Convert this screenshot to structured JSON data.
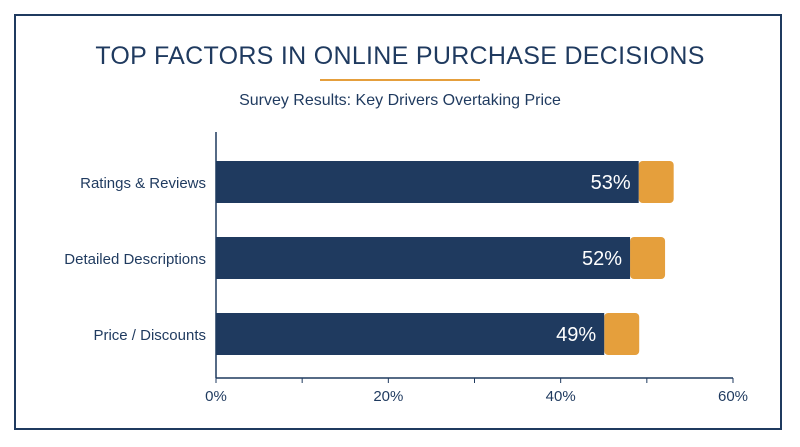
{
  "colors": {
    "frame": "#1f3a5f",
    "bar_primary": "#1f3a5f",
    "bar_accent": "#e59f3c",
    "text": "#1f3a5f",
    "label_on_bar": "#ffffff"
  },
  "chart_data": {
    "type": "bar",
    "orientation": "horizontal",
    "title": "TOP FACTORS IN ONLINE PURCHASE DECISIONS",
    "subtitle": "Survey Results: Key Drivers Overtaking Price",
    "categories": [
      "Ratings & Reviews",
      "Detailed Descriptions",
      "Price / Discounts"
    ],
    "values": [
      53,
      52,
      49
    ],
    "data_labels": [
      "53%",
      "52%",
      "49%"
    ],
    "xlim": [
      0,
      60
    ],
    "xticks": [
      0,
      20,
      40,
      60
    ],
    "xtick_labels": [
      "0%",
      "20%",
      "40%",
      "60%"
    ],
    "grid": false,
    "legend": "none"
  }
}
